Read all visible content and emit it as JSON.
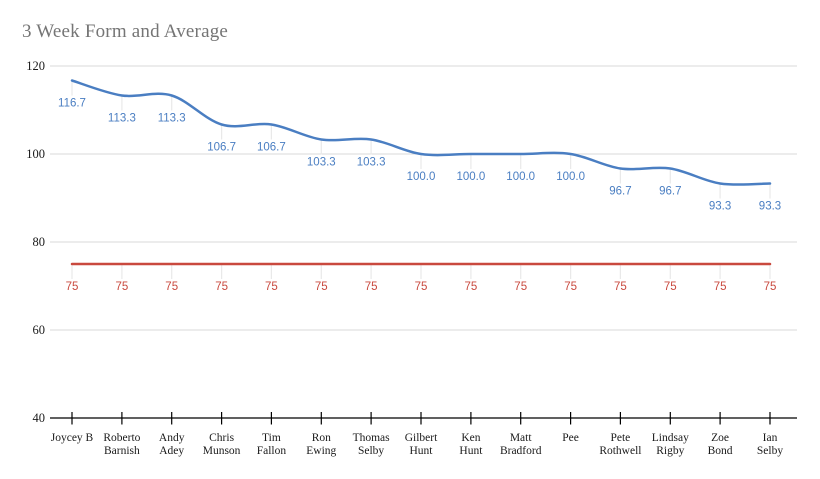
{
  "title": "3 Week Form and Average",
  "chart_data": {
    "type": "line",
    "title": "3 Week Form and Average",
    "categories": [
      "Joycey B",
      "Roberto Barnish",
      "Andy Adey",
      "Chris Munson",
      "Tim Fallon",
      "Ron Ewing",
      "Thomas Selby",
      "Gilbert Hunt",
      "Ken Hunt",
      "Matt Bradford",
      "Pee",
      "Pete Rothwell",
      "Lindsay Rigby",
      "Zoe Bond",
      "Ian Selby"
    ],
    "category_label_lines": [
      [
        "Joycey B"
      ],
      [
        "Roberto",
        "Barnish"
      ],
      [
        "Andy",
        "Adey"
      ],
      [
        "Chris",
        "Munson"
      ],
      [
        "Tim",
        "Fallon"
      ],
      [
        "Ron",
        "Ewing"
      ],
      [
        "Thomas",
        "Selby"
      ],
      [
        "Gilbert",
        "Hunt"
      ],
      [
        "Ken",
        "Hunt"
      ],
      [
        "Matt",
        "Bradford"
      ],
      [
        "Pee"
      ],
      [
        "Pete",
        "Rothwell"
      ],
      [
        "Lindsay",
        "Rigby"
      ],
      [
        "Zoe",
        "Bond"
      ],
      [
        "Ian",
        "Selby"
      ]
    ],
    "series": [
      {
        "name": "3 Week Form",
        "color": "#4a7ec2",
        "smooth": true,
        "values": [
          116.7,
          113.3,
          113.3,
          106.7,
          106.7,
          103.3,
          103.3,
          100.0,
          100.0,
          100.0,
          100.0,
          96.7,
          96.7,
          93.3,
          93.3
        ],
        "point_labels": [
          "116.7",
          "113.3",
          "113.3",
          "106.7",
          "106.7",
          "103.3",
          "103.3",
          "100.0",
          "100.0",
          "100.0",
          "100.0",
          "96.7",
          "96.7",
          "93.3",
          "93.3"
        ]
      },
      {
        "name": "Average",
        "color": "#c9493e",
        "smooth": false,
        "values": [
          75,
          75,
          75,
          75,
          75,
          75,
          75,
          75,
          75,
          75,
          75,
          75,
          75,
          75,
          75
        ],
        "point_labels": [
          "75",
          "75",
          "75",
          "75",
          "75",
          "75",
          "75",
          "75",
          "75",
          "75",
          "75",
          "75",
          "75",
          "75",
          "75"
        ]
      }
    ],
    "ylim": [
      40,
      120
    ],
    "yticks": [
      40,
      60,
      80,
      100,
      120
    ],
    "grid": "horizontal",
    "legend": "none"
  },
  "colors": {
    "title": "#757575",
    "gridline": "#d9d9d9",
    "axis": "#000000",
    "stem": "#e9e9e9",
    "axis_label": "#1a1a1a"
  }
}
